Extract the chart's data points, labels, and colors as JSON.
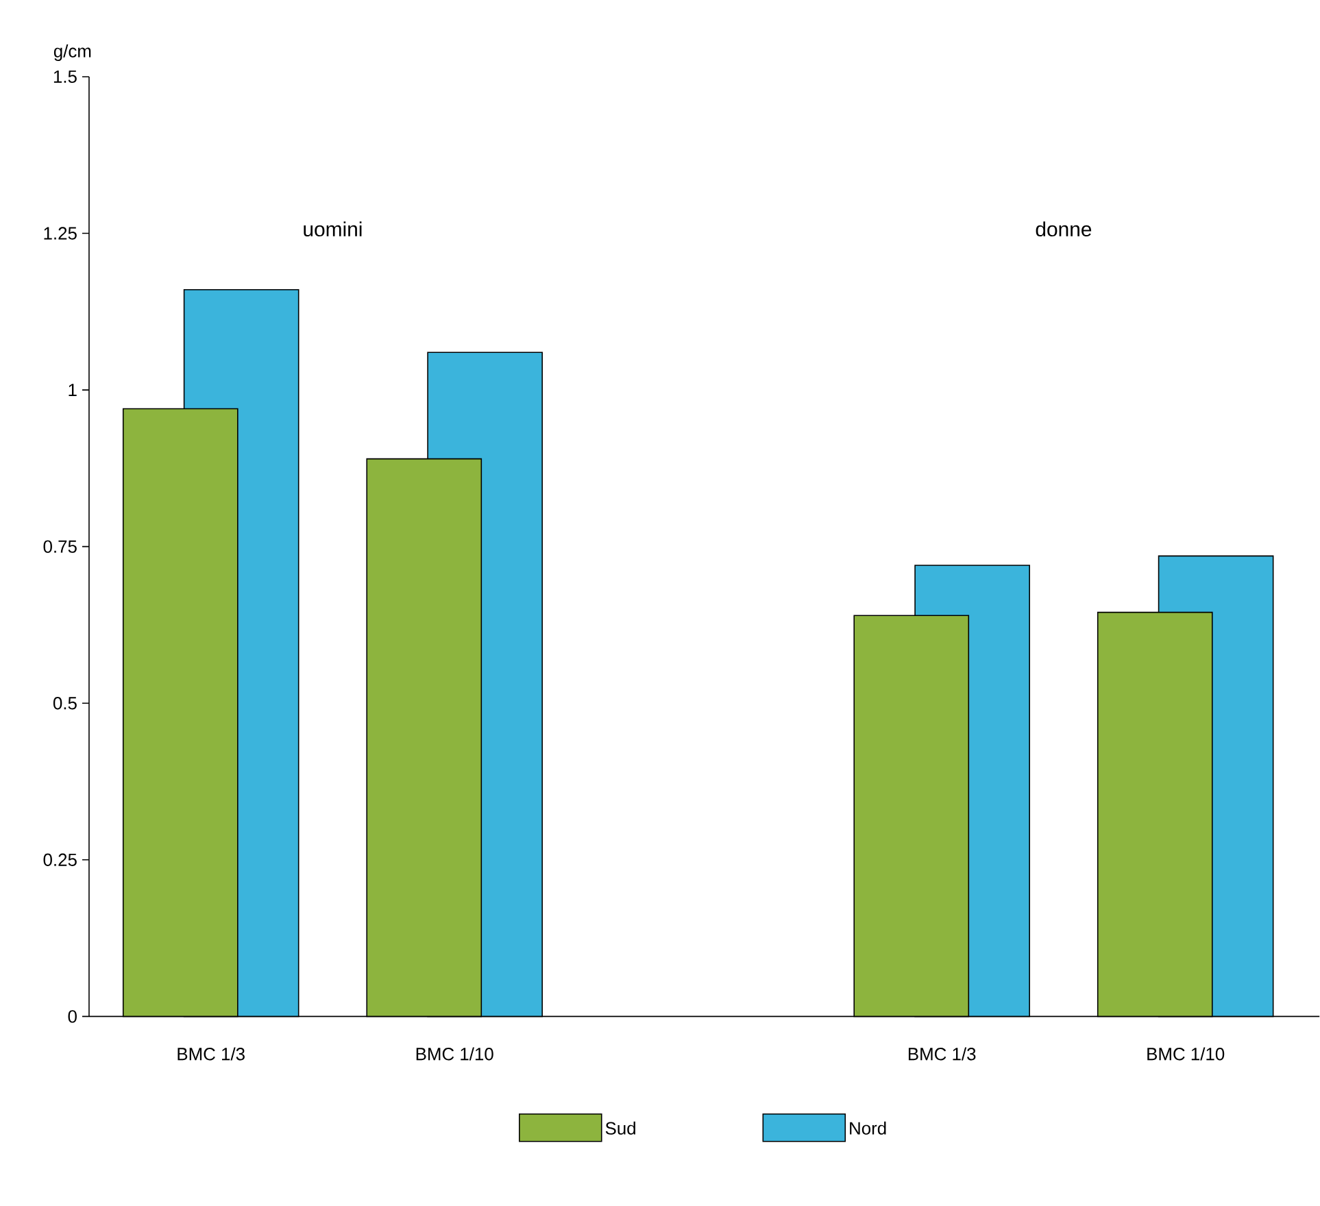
{
  "chart_data": {
    "type": "bar",
    "ylabel": "g/cm",
    "categories": [
      "BMC 1/3",
      "BMC 1/10",
      null,
      "BMC 1/3",
      "BMC 1/10"
    ],
    "series": [
      {
        "name": "Sud",
        "color": "#8db43e",
        "values": [
          0.97,
          0.89,
          null,
          0.64,
          0.645
        ]
      },
      {
        "name": "Nord",
        "color": "#3bb4dc",
        "values": [
          1.16,
          1.06,
          null,
          0.72,
          0.735
        ]
      }
    ],
    "ylim": [
      0,
      1.5
    ],
    "yticks": [
      0,
      0.25,
      0.5,
      0.75,
      1,
      1.25,
      1.5
    ],
    "annotations": [
      "uomini",
      "donne"
    ],
    "legend": "bottom",
    "grid": false
  }
}
